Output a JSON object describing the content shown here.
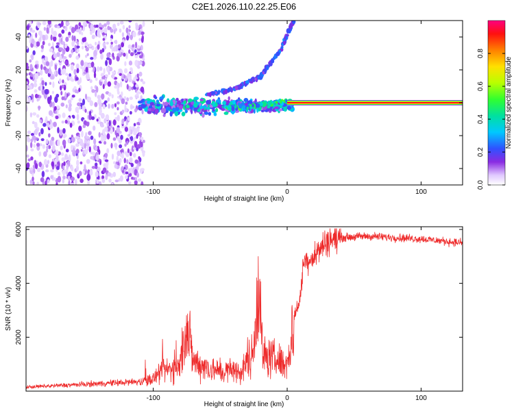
{
  "title": "C2E1.2026.110.22.25.E06",
  "chart_data": [
    {
      "type": "heatmap",
      "xlabel": "Height of straight line (km)",
      "ylabel": "Frequency (Hz)",
      "xlim": [
        -195,
        131
      ],
      "ylim": [
        -50,
        50
      ],
      "xticks": [
        -100,
        0,
        100
      ],
      "yticks": [
        -40,
        -20,
        0,
        20,
        40
      ],
      "x_tick_labels": [
        "-100",
        "0",
        "100"
      ],
      "y_tick_labels": [
        "-40",
        "-20",
        "0",
        "20",
        "40"
      ],
      "features": {
        "noise_region_x": [
          -195,
          -107
        ],
        "scatter_band": {
          "x": [
            -110,
            5
          ],
          "center_freq": -2,
          "width_hz": 8
        },
        "upper_trace": [
          [
            -60,
            5
          ],
          [
            -40,
            8
          ],
          [
            -20,
            16
          ],
          [
            -5,
            32
          ],
          [
            5,
            50
          ]
        ],
        "lower_trace": [
          [
            -45,
            -3
          ],
          [
            -30,
            -3
          ],
          [
            -20,
            -1
          ],
          [
            -10,
            0
          ],
          [
            0,
            1
          ]
        ],
        "carrier_line": {
          "x": [
            0,
            131
          ],
          "freq": 0
        }
      },
      "colorbar": {
        "label": "Normalized spectral amplitude",
        "range": [
          0.0,
          1.0
        ],
        "ticks": [
          0.0,
          0.2,
          0.4,
          0.6,
          0.8
        ],
        "tick_labels": [
          "0.0",
          "0.2",
          "0.4",
          "0.6",
          "0.8"
        ]
      }
    },
    {
      "type": "line",
      "xlabel": "Height of straight line (km)",
      "ylabel": "SNR (10 * v/v)",
      "xlim": [
        -195,
        131
      ],
      "ylim": [
        0,
        6100
      ],
      "xticks": [
        -100,
        0,
        100
      ],
      "yticks": [
        2000,
        4000,
        6000
      ],
      "x_tick_labels": [
        "-100",
        "0",
        "100"
      ],
      "y_tick_labels": [
        "2000",
        "4000",
        "6000"
      ],
      "series": [
        {
          "name": "SNR",
          "color": "#ee2a2a",
          "x": [
            -195,
            -110,
            -100,
            -90,
            -80,
            -75,
            -70,
            -60,
            -50,
            -40,
            -35,
            -25,
            -22,
            -18,
            -10,
            -5,
            0,
            2,
            5,
            10,
            12,
            20,
            30,
            40,
            60,
            80,
            100,
            120,
            131
          ],
          "y": [
            150,
            350,
            450,
            800,
            900,
            2500,
            1100,
            900,
            700,
            800,
            650,
            1500,
            4200,
            1300,
            1200,
            1100,
            1000,
            1500,
            2700,
            3500,
            4800,
            5000,
            5600,
            5700,
            5750,
            5700,
            5650,
            5550,
            5500
          ]
        }
      ]
    }
  ]
}
